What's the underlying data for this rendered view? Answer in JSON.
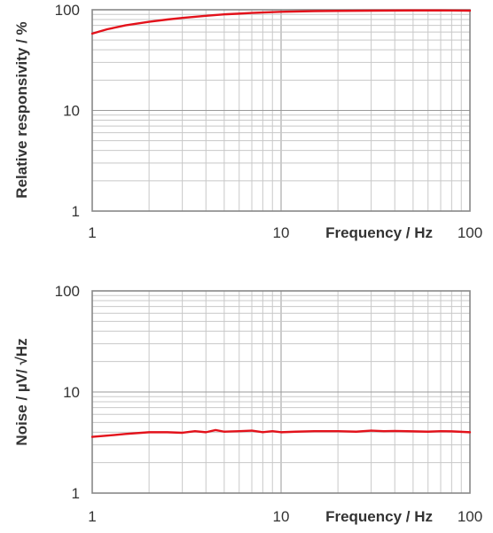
{
  "colors": {
    "series": "#e3121b",
    "grid": "#9a9a9a",
    "text": "#333333"
  },
  "chart_data": [
    {
      "type": "line",
      "title": "",
      "xlabel": "Frequency / Hz",
      "ylabel": "Relative responsivity / %",
      "xscale": "log",
      "yscale": "log",
      "xlim": [
        1,
        100
      ],
      "ylim": [
        1,
        100
      ],
      "grid": true,
      "x_ticks": [
        "1",
        "10",
        "100"
      ],
      "y_ticks": [
        "1",
        "10",
        "100"
      ],
      "series": [
        {
          "color": "#e3121b",
          "x": [
            1,
            1.2,
            1.5,
            2,
            2.5,
            3,
            4,
            5,
            6,
            7,
            8,
            10,
            15,
            20,
            30,
            50,
            70,
            100
          ],
          "y": [
            58,
            64,
            70,
            76,
            80,
            83,
            87,
            90,
            91.5,
            93,
            94,
            95.5,
            97,
            97.5,
            98,
            98.5,
            98.5,
            98
          ]
        }
      ]
    },
    {
      "type": "line",
      "title": "",
      "xlabel": "Frequency / Hz",
      "ylabel": "Noise / µV/ √Hz",
      "xscale": "log",
      "yscale": "log",
      "xlim": [
        1,
        100
      ],
      "ylim": [
        1,
        100
      ],
      "grid": true,
      "x_ticks": [
        "1",
        "10",
        "100"
      ],
      "y_ticks": [
        "1",
        "10",
        "100"
      ],
      "series": [
        {
          "color": "#e3121b",
          "x": [
            1,
            1.2,
            1.5,
            2,
            2.5,
            3,
            3.5,
            4,
            4.5,
            5,
            6,
            7,
            8,
            9,
            10,
            12,
            15,
            20,
            25,
            30,
            35,
            40,
            50,
            60,
            70,
            80,
            100
          ],
          "y": [
            3.6,
            3.7,
            3.85,
            4.0,
            4.0,
            3.95,
            4.1,
            4.0,
            4.2,
            4.05,
            4.1,
            4.15,
            4.0,
            4.1,
            4.0,
            4.05,
            4.1,
            4.1,
            4.05,
            4.15,
            4.1,
            4.12,
            4.08,
            4.05,
            4.1,
            4.08,
            4.0
          ]
        }
      ]
    }
  ]
}
